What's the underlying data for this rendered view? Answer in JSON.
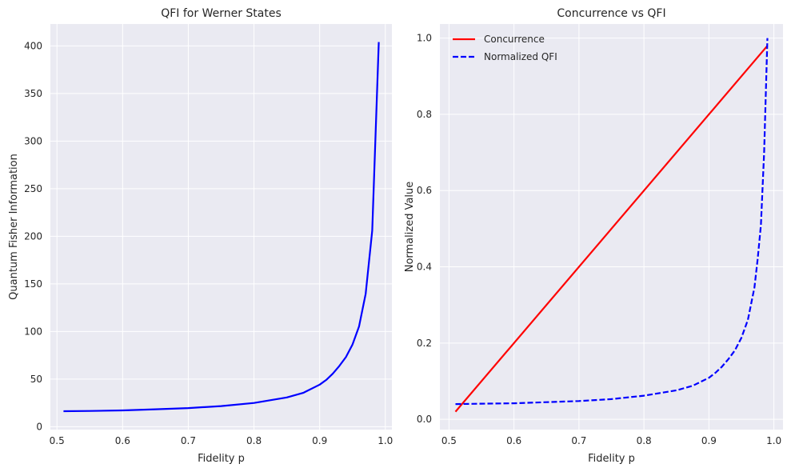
{
  "chart_data": [
    {
      "type": "line",
      "title": "QFI for Werner States",
      "xlabel": "Fidelity p",
      "ylabel": "Quantum Fisher Information",
      "xlim": [
        0.49,
        1.01
      ],
      "ylim": [
        -3,
        423
      ],
      "xticks": [
        0.5,
        0.6,
        0.7,
        0.8,
        0.9,
        1.0
      ],
      "xtick_labels": [
        "0.5",
        "0.6",
        "0.7",
        "0.8",
        "0.9",
        "1.0"
      ],
      "yticks": [
        0,
        50,
        100,
        150,
        200,
        250,
        300,
        350,
        400
      ],
      "ytick_labels": [
        "0",
        "50",
        "100",
        "150",
        "200",
        "250",
        "300",
        "350",
        "400"
      ],
      "grid": true,
      "series": [
        {
          "color": "#0000ff",
          "dash": "solid",
          "x": [
            0.51,
            0.55,
            0.6,
            0.65,
            0.7,
            0.75,
            0.8,
            0.85,
            0.875,
            0.9,
            0.91,
            0.92,
            0.93,
            0.94,
            0.95,
            0.96,
            0.97,
            0.98,
            0.99
          ],
          "y": [
            16.3,
            16.6,
            17.2,
            18.3,
            19.6,
            21.7,
            25.0,
            30.8,
            35.6,
            44.2,
            49.2,
            55.7,
            63.9,
            73.1,
            86.3,
            105.3,
            139.6,
            206.0,
            404.0
          ]
        }
      ]
    },
    {
      "type": "line",
      "title": "Concurrence vs QFI",
      "xlabel": "Fidelity p",
      "ylabel": "Normalized Value",
      "xlim": [
        0.486,
        1.014
      ],
      "ylim": [
        -0.027,
        1.037
      ],
      "xticks": [
        0.5,
        0.6,
        0.7,
        0.8,
        0.9,
        1.0
      ],
      "xtick_labels": [
        "0.5",
        "0.6",
        "0.7",
        "0.8",
        "0.9",
        "1.0"
      ],
      "yticks": [
        0.0,
        0.2,
        0.4,
        0.6,
        0.8,
        1.0
      ],
      "ytick_labels": [
        "0.0",
        "0.2",
        "0.4",
        "0.6",
        "0.8",
        "1.0"
      ],
      "grid": true,
      "legend_position": "top-left",
      "series": [
        {
          "name": "Concurrence",
          "color": "#ff0000",
          "dash": "solid",
          "x": [
            0.51,
            0.99
          ],
          "y": [
            0.02,
            0.98
          ]
        },
        {
          "name": "Normalized QFI",
          "color": "#0000ff",
          "dash": "dashed",
          "x": [
            0.51,
            0.55,
            0.6,
            0.65,
            0.7,
            0.75,
            0.8,
            0.85,
            0.875,
            0.9,
            0.91,
            0.92,
            0.93,
            0.94,
            0.95,
            0.96,
            0.97,
            0.975,
            0.98,
            0.985,
            0.99
          ],
          "y": [
            0.04,
            0.041,
            0.042,
            0.045,
            0.048,
            0.053,
            0.062,
            0.076,
            0.088,
            0.109,
            0.122,
            0.138,
            0.158,
            0.181,
            0.214,
            0.261,
            0.346,
            0.42,
            0.51,
            0.7,
            1.0
          ]
        }
      ]
    }
  ]
}
